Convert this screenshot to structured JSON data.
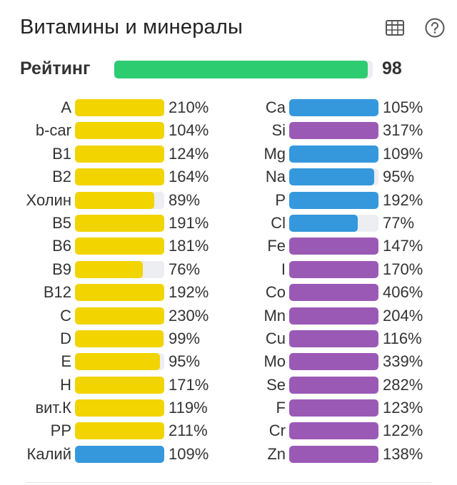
{
  "header": {
    "title": "Витамины и минералы",
    "table_icon": "table-icon",
    "help_icon": "help-circle-icon"
  },
  "rating": {
    "label": "Рейтинг",
    "value": 98,
    "color": "#2ecc71"
  },
  "colors": {
    "vitamin": "#f2d400",
    "mineral_primary": "#3598dc",
    "mineral_trace": "#9b59b6",
    "track": "#eceef1"
  },
  "chart_data": {
    "type": "bar",
    "orientation": "horizontal",
    "title": "Витамины и минералы",
    "xlim": [
      0,
      100
    ],
    "left": [
      {
        "label": "A",
        "value": 210,
        "text": "210%",
        "group": "vitamin"
      },
      {
        "label": "b-car",
        "value": 104,
        "text": "104%",
        "group": "vitamin"
      },
      {
        "label": "B1",
        "value": 124,
        "text": "124%",
        "group": "vitamin"
      },
      {
        "label": "B2",
        "value": 164,
        "text": "164%",
        "group": "vitamin"
      },
      {
        "label": "Холин",
        "value": 89,
        "text": "89%",
        "group": "vitamin"
      },
      {
        "label": "B5",
        "value": 191,
        "text": "191%",
        "group": "vitamin"
      },
      {
        "label": "B6",
        "value": 181,
        "text": "181%",
        "group": "vitamin"
      },
      {
        "label": "B9",
        "value": 76,
        "text": "76%",
        "group": "vitamin"
      },
      {
        "label": "B12",
        "value": 192,
        "text": "192%",
        "group": "vitamin"
      },
      {
        "label": "C",
        "value": 230,
        "text": "230%",
        "group": "vitamin"
      },
      {
        "label": "D",
        "value": 99,
        "text": "99%",
        "group": "vitamin"
      },
      {
        "label": "E",
        "value": 95,
        "text": "95%",
        "group": "vitamin"
      },
      {
        "label": "H",
        "value": 171,
        "text": "171%",
        "group": "vitamin"
      },
      {
        "label": "вит.К",
        "value": 119,
        "text": "119%",
        "group": "vitamin"
      },
      {
        "label": "PP",
        "value": 211,
        "text": "211%",
        "group": "vitamin"
      },
      {
        "label": "Калий",
        "value": 109,
        "text": "109%",
        "group": "mineral_primary"
      }
    ],
    "right": [
      {
        "label": "Ca",
        "value": 105,
        "text": "105%",
        "group": "mineral_primary"
      },
      {
        "label": "Si",
        "value": 317,
        "text": "317%",
        "group": "mineral_trace"
      },
      {
        "label": "Mg",
        "value": 109,
        "text": "109%",
        "group": "mineral_primary"
      },
      {
        "label": "Na",
        "value": 95,
        "text": "95%",
        "group": "mineral_primary"
      },
      {
        "label": "P",
        "value": 192,
        "text": "192%",
        "group": "mineral_primary"
      },
      {
        "label": "Cl",
        "value": 77,
        "text": "77%",
        "group": "mineral_primary"
      },
      {
        "label": "Fe",
        "value": 147,
        "text": "147%",
        "group": "mineral_trace"
      },
      {
        "label": "I",
        "value": 170,
        "text": "170%",
        "group": "mineral_trace"
      },
      {
        "label": "Co",
        "value": 406,
        "text": "406%",
        "group": "mineral_trace"
      },
      {
        "label": "Mn",
        "value": 204,
        "text": "204%",
        "group": "mineral_trace"
      },
      {
        "label": "Cu",
        "value": 116,
        "text": "116%",
        "group": "mineral_trace"
      },
      {
        "label": "Mo",
        "value": 339,
        "text": "339%",
        "group": "mineral_trace"
      },
      {
        "label": "Se",
        "value": 282,
        "text": "282%",
        "group": "mineral_trace"
      },
      {
        "label": "F",
        "value": 123,
        "text": "123%",
        "group": "mineral_trace"
      },
      {
        "label": "Cr",
        "value": 122,
        "text": "122%",
        "group": "mineral_trace"
      },
      {
        "label": "Zn",
        "value": 138,
        "text": "138%",
        "group": "mineral_trace"
      }
    ]
  }
}
